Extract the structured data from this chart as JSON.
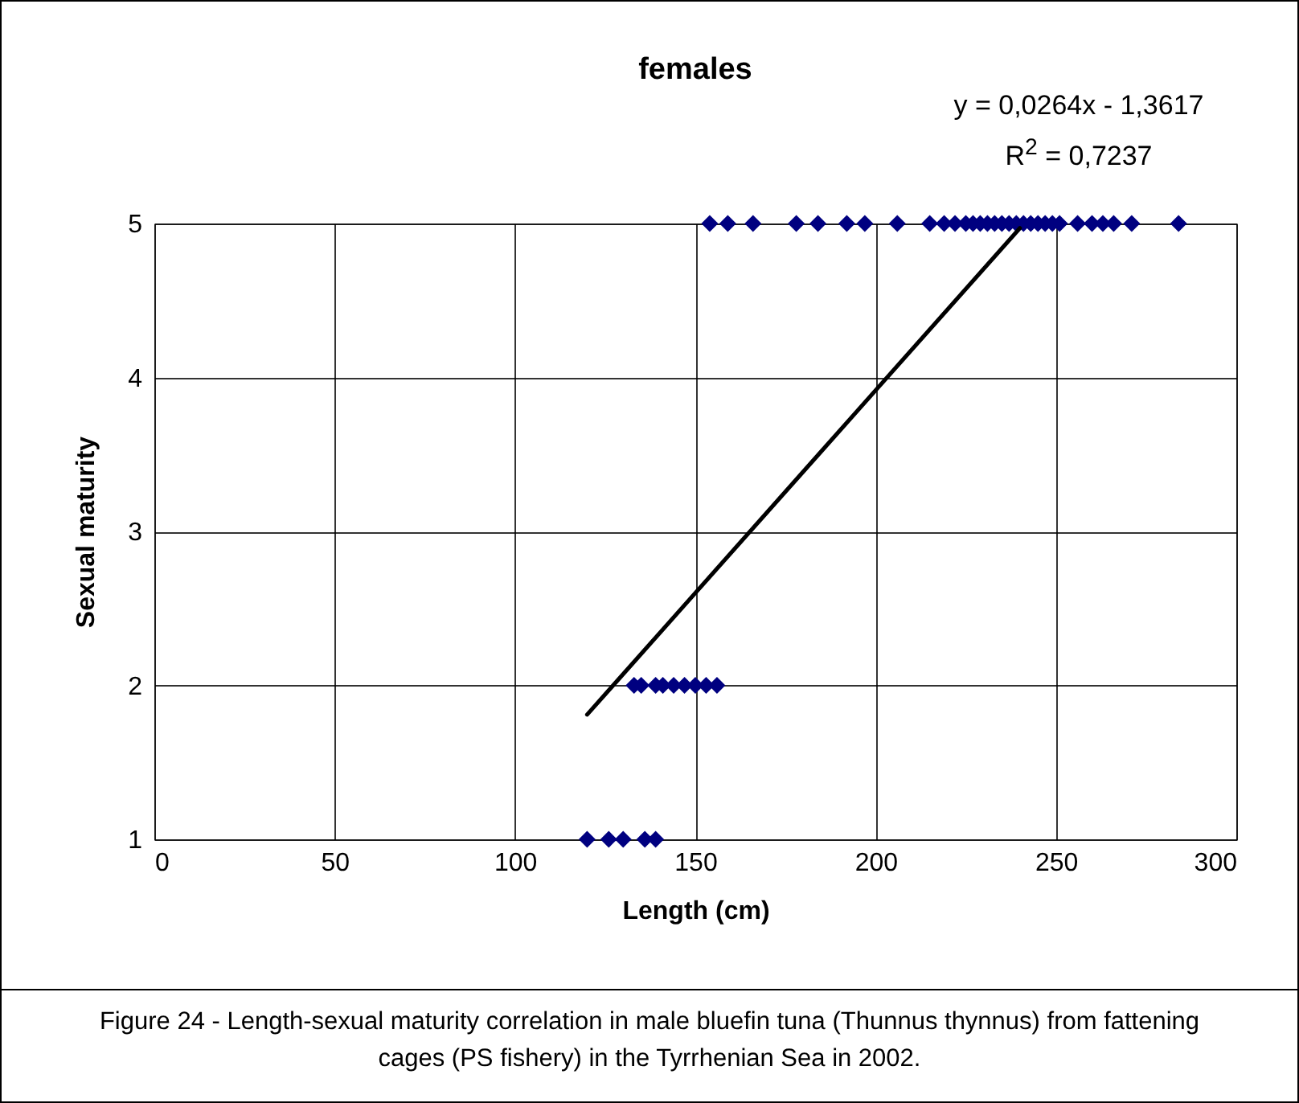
{
  "chart_data": {
    "type": "scatter",
    "title": "females",
    "xlabel": "Length (cm)",
    "ylabel": "Sexual maturity",
    "xlim": [
      0,
      300
    ],
    "xticks": [
      0,
      50,
      100,
      150,
      200,
      250,
      300
    ],
    "ylim": [
      1,
      5
    ],
    "yticks": [
      1,
      2,
      3,
      4,
      5
    ],
    "grid": true,
    "series": [
      {
        "marker": "diamond",
        "color": "#000080",
        "x": [
          120,
          126,
          130,
          136,
          139,
          133,
          135,
          139,
          141,
          144,
          147,
          150,
          153,
          156,
          154,
          159,
          166,
          178,
          184,
          192,
          197,
          206,
          215,
          219,
          222,
          225,
          227,
          229,
          231,
          233,
          235,
          237,
          239,
          241,
          243,
          245,
          247,
          249,
          251,
          256,
          260,
          263,
          266,
          271,
          284
        ],
        "values": [
          1,
          1,
          1,
          1,
          1,
          2,
          2,
          2,
          2,
          2,
          2,
          2,
          2,
          2,
          5,
          5,
          5,
          5,
          5,
          5,
          5,
          5,
          5,
          5,
          5,
          5,
          5,
          5,
          5,
          5,
          5,
          5,
          5,
          5,
          5,
          5,
          5,
          5,
          5,
          5,
          5,
          5,
          5,
          5,
          5
        ]
      },
      {
        "type": "line",
        "marker": "none",
        "color": "#000000",
        "x": [
          120,
          240
        ],
        "values": [
          1.81,
          4.97
        ]
      }
    ],
    "annotations": [
      "y = 0,0264x - 1,3617",
      "R$^{2}$ = 0,7237",
      "Figure 24 - Length-sexual maturity correlation in male bluefin tuna (Thunnus thynnus) from fattening cages (PS fishery) in the Tyrrhenian Sea in 2002."
    ]
  }
}
